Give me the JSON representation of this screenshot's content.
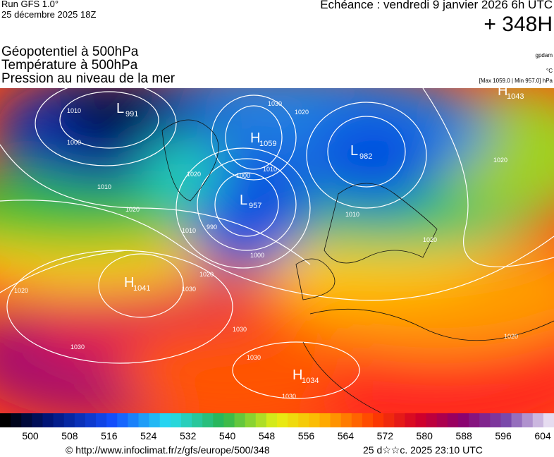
{
  "header": {
    "run": "Run GFS 1.0°",
    "run_date": "25 décembre 2025 18Z",
    "valid": "Echéance : vendredi 9 janvier 2026 6h UTC",
    "lead": "+ 348H"
  },
  "fields": [
    "Géopotentiel à 500hPa",
    "Température à 500hPa",
    "Pression au niveau de la mer"
  ],
  "units": {
    "geopotential": "gpdam",
    "temperature": "°C",
    "pressure": "[Max 1059.0 | Min 957.0] hPa"
  },
  "centers": [
    {
      "letter": "L",
      "value": "991"
    },
    {
      "letter": "H",
      "value": "1059"
    },
    {
      "letter": "L",
      "value": "982"
    },
    {
      "letter": "L",
      "value": "957"
    },
    {
      "letter": "H",
      "value": "1043"
    },
    {
      "letter": "H",
      "value": "1041"
    },
    {
      "letter": "H",
      "value": "1034"
    }
  ],
  "isobar_labels": [
    "1010",
    "1000",
    "1030",
    "1020",
    "1020",
    "1010",
    "1000",
    "1010",
    "990",
    "1000",
    "1020",
    "1010",
    "1020",
    "1020",
    "1030",
    "1030",
    "1030",
    "1030",
    "1030",
    "1020",
    "1020",
    "1010",
    "1020"
  ],
  "colorbar_labels": [
    "500",
    "508",
    "516",
    "524",
    "532",
    "540",
    "548",
    "556",
    "564",
    "572",
    "580",
    "588",
    "596",
    "604"
  ],
  "footer": {
    "source": "© http://www.infoclimat.fr/z/gfs/europe/500/348",
    "generated": "25 d☆☆c. 2025 23:10 UTC"
  }
}
